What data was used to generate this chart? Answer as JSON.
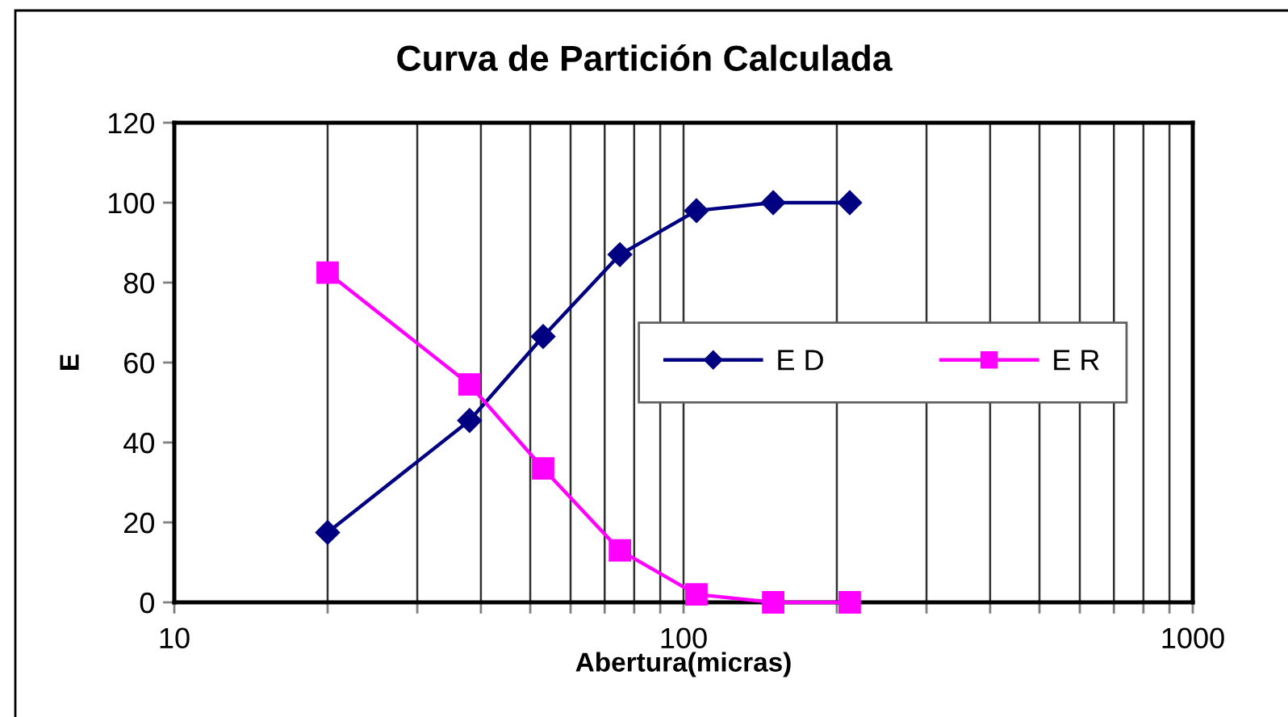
{
  "chart_data": {
    "type": "line",
    "title": "Curva de Partición Calculada",
    "xlabel": "Abertura(micras)",
    "ylabel": "E",
    "x": [
      20,
      38,
      53,
      75,
      106,
      150,
      212
    ],
    "series": [
      {
        "name": "E D",
        "color": "#000080",
        "marker": "diamond",
        "values": [
          17.5,
          45.5,
          66.5,
          87,
          98,
          100,
          100
        ]
      },
      {
        "name": "E R",
        "color": "#ff00ff",
        "marker": "square",
        "values": [
          82.5,
          54.5,
          33.5,
          13,
          2,
          0,
          0
        ]
      }
    ],
    "log": "x",
    "xlim": [
      10,
      1000
    ],
    "xticks": [
      10,
      {
        "value": 20,
        "label": null
      },
      {
        "value": 30,
        "label": null
      },
      {
        "value": 40,
        "label": null
      },
      {
        "value": 50,
        "label": null
      },
      {
        "value": 60,
        "label": null
      },
      {
        "value": 70,
        "label": null
      },
      {
        "value": 80,
        "label": null
      },
      {
        "value": 90,
        "label": null
      },
      100,
      {
        "value": 200,
        "label": null
      },
      {
        "value": 300,
        "label": null
      },
      {
        "value": 400,
        "label": null
      },
      {
        "value": 500,
        "label": null
      },
      {
        "value": 600,
        "label": null
      },
      {
        "value": 700,
        "label": null
      },
      {
        "value": 800,
        "label": null
      },
      {
        "value": 900,
        "label": null
      },
      1000
    ],
    "ylim": [
      0,
      120
    ],
    "yticks": [
      0,
      20,
      40,
      60,
      80,
      100,
      120
    ],
    "grid": "x",
    "legend": "right",
    "line_style": "solid"
  }
}
